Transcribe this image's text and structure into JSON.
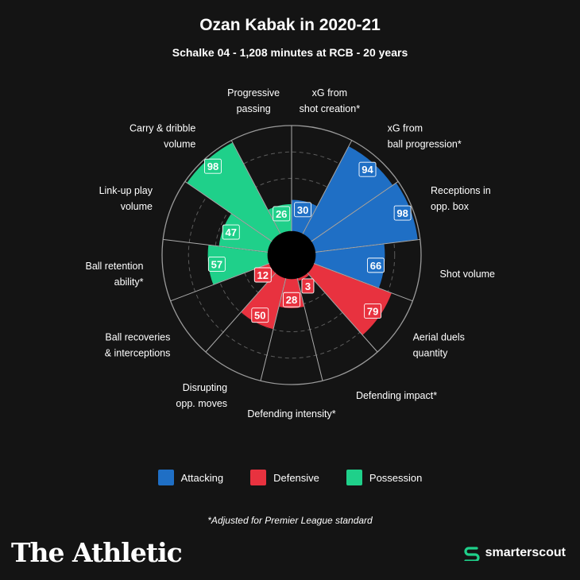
{
  "header": {
    "title": "Ozan Kabak in 2020-21",
    "subtitle": "Schalke 04 - 1,208 minutes at RCB - 20 years"
  },
  "chart_data": {
    "type": "radial-bar",
    "scale_max": 100,
    "rings": [
      25,
      50,
      75,
      100
    ],
    "metrics": [
      {
        "label_lines": [
          "xG from",
          "shot creation*"
        ],
        "value": 30,
        "category": "Attacking"
      },
      {
        "label_lines": [
          "xG from",
          "ball progression*"
        ],
        "value": 94,
        "category": "Attacking"
      },
      {
        "label_lines": [
          "Receptions in",
          "opp. box"
        ],
        "value": 98,
        "category": "Attacking"
      },
      {
        "label_lines": [
          "Shot volume"
        ],
        "value": 66,
        "category": "Attacking"
      },
      {
        "label_lines": [
          "Aerial duels",
          "quantity"
        ],
        "value": 79,
        "category": "Defensive"
      },
      {
        "label_lines": [
          "Defending impact*"
        ],
        "value": 3,
        "category": "Defensive"
      },
      {
        "label_lines": [
          "Defending intensity*"
        ],
        "value": 28,
        "category": "Defensive"
      },
      {
        "label_lines": [
          "Disrupting",
          "opp. moves"
        ],
        "value": 50,
        "category": "Defensive"
      },
      {
        "label_lines": [
          "Ball recoveries",
          "& interceptions"
        ],
        "value": 12,
        "category": "Defensive"
      },
      {
        "label_lines": [
          "Ball retention",
          "ability*"
        ],
        "value": 57,
        "category": "Possession"
      },
      {
        "label_lines": [
          "Link-up play",
          "volume"
        ],
        "value": 47,
        "category": "Possession"
      },
      {
        "label_lines": [
          "Carry & dribble",
          "volume"
        ],
        "value": 98,
        "category": "Possession"
      },
      {
        "label_lines": [
          "Progressive",
          "passing"
        ],
        "value": 26,
        "category": "Possession"
      }
    ]
  },
  "legend": {
    "items": [
      {
        "label": "Attacking",
        "color": "#1f6fc5"
      },
      {
        "label": "Defensive",
        "color": "#e8323f"
      },
      {
        "label": "Possession",
        "color": "#1fd08a"
      }
    ]
  },
  "footnote": "*Adjusted for Premier League standard",
  "branding": {
    "left": "The Athletic",
    "right": "smarterscout"
  }
}
